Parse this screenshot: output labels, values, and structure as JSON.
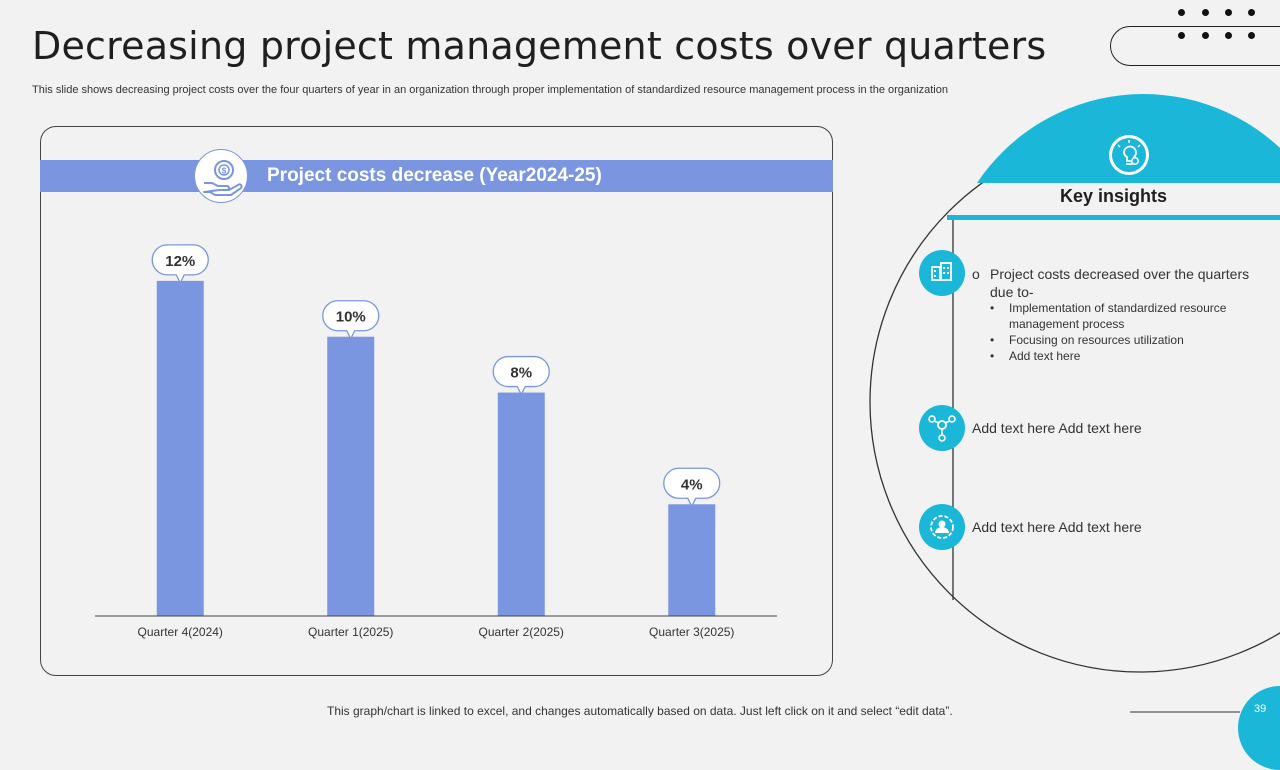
{
  "slide": {
    "title": "Decreasing project management costs over quarters",
    "subtitle": "This slide shows decreasing project costs over the four quarters of year in an organization through proper implementation of standardized resource management process in the organization",
    "footnote": "This graph/chart is linked to excel, and changes automatically based on data. Just left click on it and select “edit data”.",
    "page_number": "39"
  },
  "colors": {
    "bar": "#7b96e0",
    "accent": "#1ab7d9",
    "background": "#f2f2f2"
  },
  "chart_data": {
    "type": "bar",
    "title": "Project costs decrease (Year2024-25)",
    "categories": [
      "Quarter 4(2024)",
      "Quarter 1(2025)",
      "Quarter 2(2025)",
      "Quarter 3(2025)"
    ],
    "values": [
      12,
      10,
      8,
      4
    ],
    "value_labels": [
      "12%",
      "10%",
      "8%",
      "4%"
    ],
    "ylim": [
      0,
      14
    ],
    "xlabel": "",
    "ylabel": "",
    "grid": false,
    "legend": "none"
  },
  "insights": {
    "header": "Key insights",
    "main_point": "Project costs decreased over the quarters due to-",
    "main_marker": "o",
    "bullet_marker": "•",
    "bullets": [
      "Implementation of standardized resource management process",
      "Focusing on resources utilization",
      "Add text here"
    ],
    "text_2": "Add text here Add text here",
    "text_3": "Add text here Add text here",
    "icons": [
      "bulb-gear-icon",
      "building-icon",
      "network-gear-icon",
      "user-gear-icon"
    ]
  }
}
